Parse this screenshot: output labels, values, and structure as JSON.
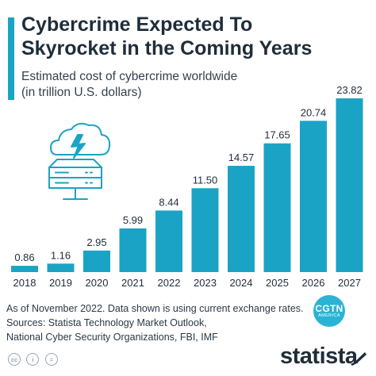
{
  "header": {
    "title_line1": "Cybercrime Expected To",
    "title_line2": "Skyrocket in the Coming Years",
    "subtitle_line1": "Estimated cost of cybercrime worldwide",
    "subtitle_line2": "(in trillion U.S. dollars)"
  },
  "footer": {
    "note_line1": "As of November 2022. Data shown is using current exchange rates.",
    "note_line2": "Sources: Statista Technology Market Outlook,",
    "note_line3": "National Cyber Security Organizations, FBI, IMF",
    "brand": "statista"
  },
  "watermark": {
    "main": "CGTN",
    "sub": "AMERICA",
    "color": "#2bb3d6"
  },
  "license": {
    "cc": "cc",
    "by": "i",
    "nd": "="
  },
  "colors": {
    "bar": "#1ba3c6",
    "accent": "#1ba3c6",
    "text": "#1f2d3a"
  },
  "chart_data": {
    "type": "bar",
    "title": "Cybercrime Expected To Skyrocket in the Coming Years",
    "subtitle": "Estimated cost of cybercrime worldwide (in trillion U.S. dollars)",
    "categories": [
      "2018",
      "2019",
      "2020",
      "2021",
      "2022",
      "2023",
      "2024",
      "2025",
      "2026",
      "2027"
    ],
    "values": [
      0.86,
      1.16,
      2.95,
      5.99,
      8.44,
      11.5,
      14.57,
      17.65,
      20.74,
      23.82
    ],
    "value_labels": [
      "0.86",
      "1.16",
      "2.95",
      "5.99",
      "8.44",
      "11.50",
      "14.57",
      "17.65",
      "20.74",
      "23.82"
    ],
    "ylim": [
      0,
      23.82
    ],
    "grid": false,
    "legend": "none"
  }
}
